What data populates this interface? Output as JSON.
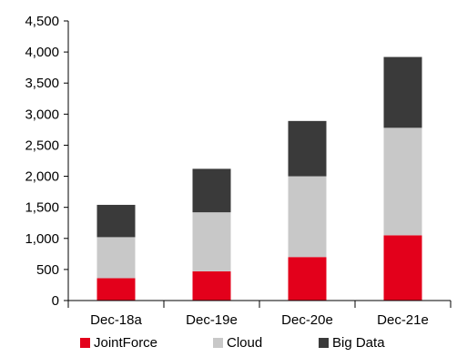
{
  "chart_data": {
    "type": "bar",
    "stacked": true,
    "categories": [
      "Dec-18a",
      "Dec-19e",
      "Dec-20e",
      "Dec-21e"
    ],
    "series": [
      {
        "name": "JointForce",
        "color": "#e3001b",
        "values": [
          360,
          470,
          700,
          1050
        ]
      },
      {
        "name": "Cloud",
        "color": "#c8c8c8",
        "values": [
          660,
          950,
          1300,
          1730
        ]
      },
      {
        "name": "Big Data",
        "color": "#3a3a3a",
        "values": [
          520,
          700,
          890,
          1140
        ]
      }
    ],
    "ylim": [
      0,
      4500
    ],
    "yticks": [
      "0",
      "500",
      "1,000",
      "1,500",
      "2,000",
      "2,500",
      "3,000",
      "3,500",
      "4,000",
      "4,500"
    ],
    "ytick_values": [
      0,
      500,
      1000,
      1500,
      2000,
      2500,
      3000,
      3500,
      4000,
      4500
    ],
    "grid": false,
    "legend_position": "bottom"
  }
}
